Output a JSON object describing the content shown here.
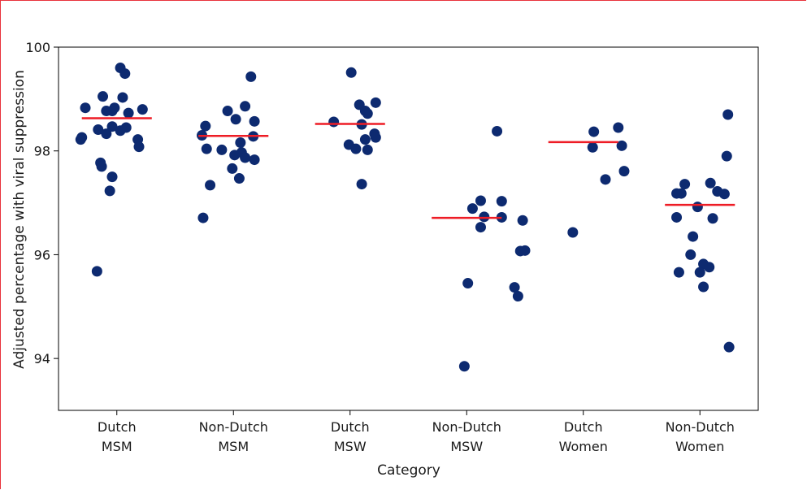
{
  "chart_data": {
    "type": "scatter",
    "xlabel": "Category",
    "ylabel": "Adjusted percentage with viral suppression",
    "ylim": [
      93,
      100
    ],
    "yticks": [
      "94",
      "96",
      "98",
      "100"
    ],
    "colors": {
      "point": "#0d2a70",
      "mean": "#ee1c25",
      "frame": "#e8323c"
    },
    "categories": [
      {
        "line1": "Dutch",
        "line2": "MSM"
      },
      {
        "line1": "Non-Dutch",
        "line2": "MSM"
      },
      {
        "line1": "Dutch",
        "line2": "MSW"
      },
      {
        "line1": "Non-Dutch",
        "line2": "MSW"
      },
      {
        "line1": "Dutch",
        "line2": "Women"
      },
      {
        "line1": "Non-Dutch",
        "line2": "Women"
      }
    ],
    "series": [
      {
        "mean": 98.63,
        "points": [
          [
            -0.27,
            98.83
          ],
          [
            -0.12,
            99.05
          ],
          [
            -0.04,
            98.77
          ],
          [
            0.03,
            99.6
          ],
          [
            0.07,
            99.49
          ],
          [
            0.05,
            99.03
          ],
          [
            -0.09,
            98.77
          ],
          [
            -0.02,
            98.83
          ],
          [
            0.1,
            98.73
          ],
          [
            0.22,
            98.8
          ],
          [
            -0.16,
            98.41
          ],
          [
            -0.09,
            98.33
          ],
          [
            -0.04,
            98.47
          ],
          [
            0.03,
            98.39
          ],
          [
            0.08,
            98.45
          ],
          [
            -0.3,
            98.26
          ],
          [
            -0.31,
            98.22
          ],
          [
            0.18,
            98.22
          ],
          [
            0.19,
            98.08
          ],
          [
            -0.14,
            97.77
          ],
          [
            -0.13,
            97.7
          ],
          [
            -0.04,
            97.5
          ],
          [
            -0.06,
            97.23
          ],
          [
            -0.17,
            95.68
          ]
        ]
      },
      {
        "mean": 98.29,
        "points": [
          [
            0.15,
            99.43
          ],
          [
            -0.05,
            98.77
          ],
          [
            0.1,
            98.86
          ],
          [
            0.02,
            98.61
          ],
          [
            0.18,
            98.57
          ],
          [
            -0.24,
            98.48
          ],
          [
            -0.27,
            98.3
          ],
          [
            0.17,
            98.28
          ],
          [
            0.06,
            98.16
          ],
          [
            -0.23,
            98.04
          ],
          [
            -0.1,
            98.02
          ],
          [
            0.01,
            97.92
          ],
          [
            0.07,
            97.97
          ],
          [
            0.1,
            97.87
          ],
          [
            0.18,
            97.83
          ],
          [
            -0.01,
            97.66
          ],
          [
            0.05,
            97.47
          ],
          [
            -0.2,
            97.34
          ],
          [
            -0.26,
            96.71
          ]
        ]
      },
      {
        "mean": 98.52,
        "points": [
          [
            0.01,
            99.51
          ],
          [
            0.08,
            98.89
          ],
          [
            0.22,
            98.93
          ],
          [
            0.13,
            98.77
          ],
          [
            0.15,
            98.72
          ],
          [
            -0.14,
            98.56
          ],
          [
            0.1,
            98.51
          ],
          [
            0.21,
            98.33
          ],
          [
            0.22,
            98.26
          ],
          [
            0.13,
            98.22
          ],
          [
            -0.01,
            98.12
          ],
          [
            0.05,
            98.04
          ],
          [
            0.15,
            98.02
          ],
          [
            0.1,
            97.36
          ]
        ]
      },
      {
        "mean": 96.71,
        "points": [
          [
            0.26,
            98.38
          ],
          [
            0.12,
            97.04
          ],
          [
            0.3,
            97.03
          ],
          [
            0.05,
            96.89
          ],
          [
            0.15,
            96.73
          ],
          [
            0.3,
            96.72
          ],
          [
            0.48,
            96.66
          ],
          [
            0.12,
            96.53
          ],
          [
            0.46,
            96.07
          ],
          [
            0.5,
            96.08
          ],
          [
            0.01,
            95.45
          ],
          [
            0.41,
            95.37
          ],
          [
            0.44,
            95.2
          ],
          [
            -0.02,
            93.85
          ]
        ]
      },
      {
        "mean": 98.17,
        "points": [
          [
            0.3,
            98.45
          ],
          [
            0.09,
            98.37
          ],
          [
            0.08,
            98.07
          ],
          [
            0.33,
            98.1
          ],
          [
            0.35,
            97.61
          ],
          [
            0.19,
            97.45
          ],
          [
            -0.09,
            96.43
          ]
        ]
      },
      {
        "mean": 96.96,
        "points": [
          [
            0.24,
            98.7
          ],
          [
            0.23,
            97.9
          ],
          [
            -0.13,
            97.36
          ],
          [
            0.09,
            97.38
          ],
          [
            -0.16,
            97.18
          ],
          [
            -0.2,
            97.18
          ],
          [
            0.21,
            97.17
          ],
          [
            0.15,
            97.22
          ],
          [
            -0.02,
            96.92
          ],
          [
            -0.2,
            96.72
          ],
          [
            0.11,
            96.7
          ],
          [
            -0.06,
            96.35
          ],
          [
            -0.08,
            96.0
          ],
          [
            0.03,
            95.82
          ],
          [
            0.08,
            95.76
          ],
          [
            -0.18,
            95.66
          ],
          [
            0.0,
            95.66
          ],
          [
            0.03,
            95.38
          ],
          [
            0.25,
            94.22
          ]
        ]
      }
    ]
  }
}
